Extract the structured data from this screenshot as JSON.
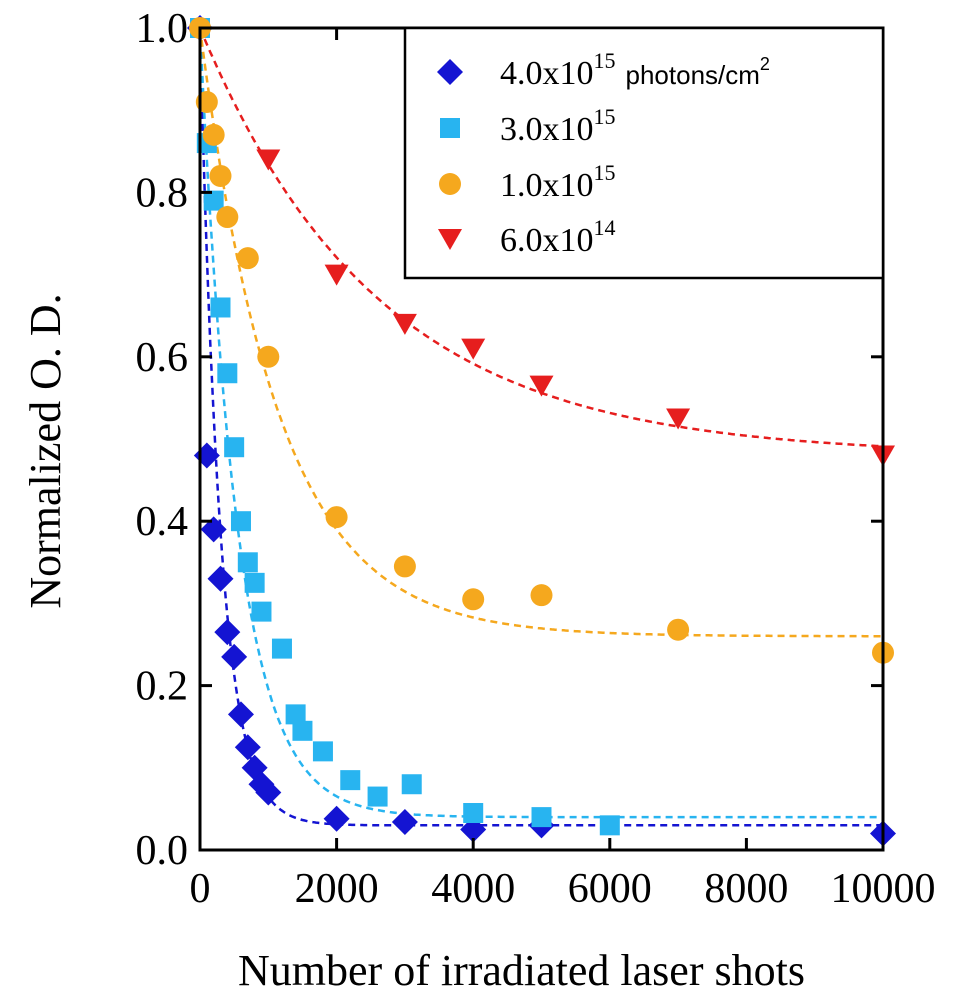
{
  "chart_data": {
    "type": "scatter",
    "xlabel": "Number of irradiated laser shots",
    "ylabel": "Normalized O. D.",
    "xlim": [
      0,
      10000
    ],
    "ylim": [
      0,
      1.0
    ],
    "xticks": [
      0,
      2000,
      4000,
      6000,
      8000,
      10000
    ],
    "xtick_labels": [
      "0",
      "2000",
      "4000",
      "6000",
      "8000",
      "10000"
    ],
    "yticks": [
      0,
      0.2,
      0.4,
      0.6,
      0.8,
      1.0
    ],
    "ytick_labels": [
      "0.0",
      "0.2",
      "0.4",
      "0.6",
      "0.8",
      "1.0"
    ],
    "legend_position": "top-right",
    "legend_unit": "photons/cm",
    "legend_unit_sup": "2",
    "series": [
      {
        "name": "4.0x10^15 photons/cm^2",
        "label_base": "4.0x10",
        "label_exp": "15",
        "marker": "diamond",
        "color": "#1414d2",
        "fit": {
          "a": 0.97,
          "tau": 300,
          "c": 0.03
        },
        "points": [
          [
            0,
            1.0
          ],
          [
            100,
            0.48
          ],
          [
            200,
            0.39
          ],
          [
            300,
            0.33
          ],
          [
            400,
            0.265
          ],
          [
            500,
            0.235
          ],
          [
            600,
            0.165
          ],
          [
            700,
            0.125
          ],
          [
            800,
            0.1
          ],
          [
            900,
            0.08
          ],
          [
            1000,
            0.07
          ],
          [
            2000,
            0.038
          ],
          [
            3000,
            0.034
          ],
          [
            4000,
            0.025
          ],
          [
            5000,
            0.03
          ],
          [
            10000,
            0.02
          ]
        ]
      },
      {
        "name": "3.0x10^15",
        "label_base": "3.0x10",
        "label_exp": "15",
        "marker": "square",
        "color": "#28b4f0",
        "fit": {
          "a": 0.96,
          "tau": 550,
          "c": 0.04
        },
        "points": [
          [
            0,
            1.0
          ],
          [
            100,
            0.86
          ],
          [
            200,
            0.79
          ],
          [
            300,
            0.66
          ],
          [
            400,
            0.58
          ],
          [
            500,
            0.49
          ],
          [
            600,
            0.4
          ],
          [
            700,
            0.35
          ],
          [
            800,
            0.325
          ],
          [
            900,
            0.29
          ],
          [
            1200,
            0.245
          ],
          [
            1400,
            0.165
          ],
          [
            1500,
            0.145
          ],
          [
            1800,
            0.12
          ],
          [
            2200,
            0.085
          ],
          [
            2600,
            0.065
          ],
          [
            3100,
            0.08
          ],
          [
            4000,
            0.045
          ],
          [
            5000,
            0.04
          ],
          [
            6000,
            0.03
          ]
        ]
      },
      {
        "name": "1.0x10^15",
        "label_base": "1.0x10",
        "label_exp": "15",
        "marker": "circle",
        "color": "#f5a81e",
        "fit": {
          "a": 0.74,
          "tau": 1150,
          "c": 0.26
        },
        "points": [
          [
            0,
            1.0
          ],
          [
            100,
            0.91
          ],
          [
            200,
            0.87
          ],
          [
            300,
            0.82
          ],
          [
            400,
            0.77
          ],
          [
            700,
            0.72
          ],
          [
            1000,
            0.6
          ],
          [
            2000,
            0.405
          ],
          [
            3000,
            0.345
          ],
          [
            4000,
            0.305
          ],
          [
            5000,
            0.31
          ],
          [
            7000,
            0.268
          ],
          [
            10000,
            0.24
          ]
        ]
      },
      {
        "name": "6.0x10^14",
        "label_base": "6.0x10",
        "label_exp": "14",
        "marker": "triangle-down",
        "color": "#e61e1e",
        "fit": {
          "a": 0.52,
          "tau": 2600,
          "c": 0.48
        },
        "points": [
          [
            1000,
            0.84
          ],
          [
            2000,
            0.7
          ],
          [
            3000,
            0.64
          ],
          [
            4000,
            0.61
          ],
          [
            5000,
            0.565
          ],
          [
            7000,
            0.525
          ],
          [
            10000,
            0.48
          ]
        ]
      }
    ]
  }
}
